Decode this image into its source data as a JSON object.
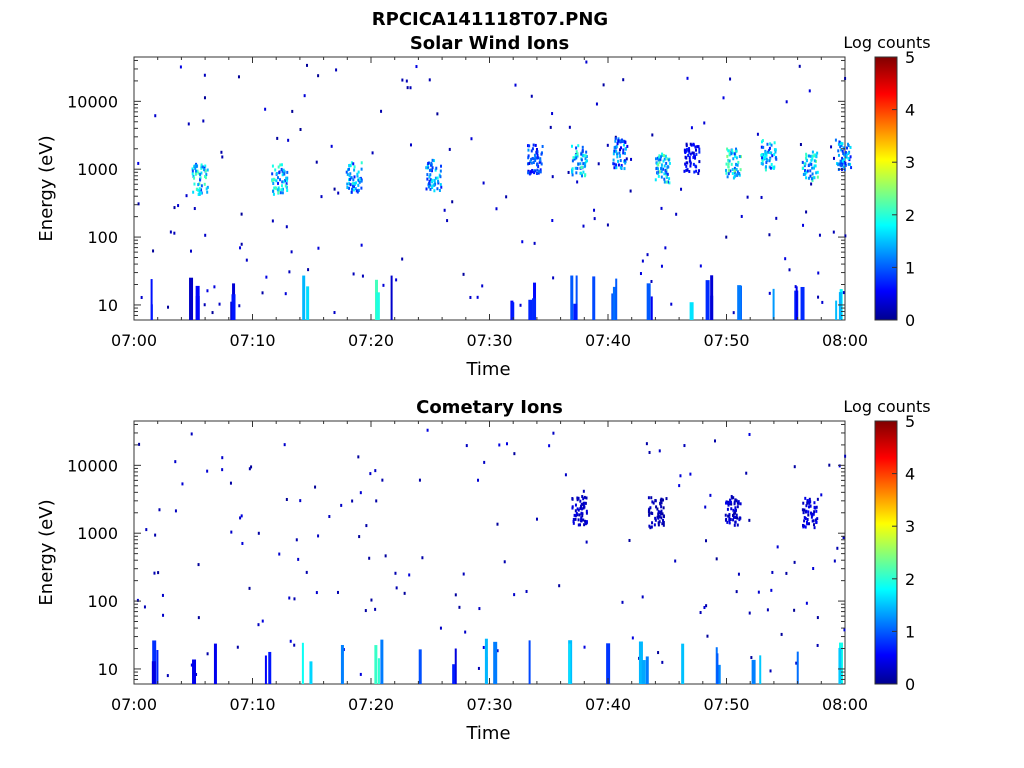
{
  "figure": {
    "title": "RPCICA141118T07.PNG"
  },
  "chart_data": [
    {
      "type": "heatmap",
      "title": "Solar Wind Ions",
      "xlabel": "Time",
      "ylabel": "Energy (eV)",
      "y_scale": "log",
      "xlim": [
        "07:00",
        "08:00"
      ],
      "ylim": [
        6,
        45000
      ],
      "x_ticks": [
        "07:00",
        "07:10",
        "07:20",
        "07:30",
        "07:40",
        "07:50",
        "08:00"
      ],
      "y_ticks": [
        "10",
        "100",
        "1000",
        "10000"
      ],
      "colorbar": {
        "label": "Log counts",
        "range": [
          0,
          5
        ],
        "ticks": [
          "0",
          "1",
          "2",
          "3",
          "4",
          "5"
        ],
        "colormap": "jet"
      },
      "grid": false,
      "bursts": [
        {
          "time": "07:05.5",
          "energy": 750,
          "log_counts": 2.3
        },
        {
          "time": "07:12.2",
          "energy": 750,
          "log_counts": 2.2
        },
        {
          "time": "07:18.5",
          "energy": 800,
          "log_counts": 2.0
        },
        {
          "time": "07:25.2",
          "energy": 850,
          "log_counts": 1.9
        },
        {
          "time": "07:33.8",
          "energy": 1500,
          "log_counts": 1.3
        },
        {
          "time": "07:37.5",
          "energy": 1400,
          "log_counts": 2.2
        },
        {
          "time": "07:41.0",
          "energy": 1800,
          "log_counts": 1.6
        },
        {
          "time": "07:44.5",
          "energy": 1100,
          "log_counts": 2.4
        },
        {
          "time": "07:47.0",
          "energy": 1500,
          "log_counts": 0.8
        },
        {
          "time": "07:50.5",
          "energy": 1300,
          "log_counts": 2.5
        },
        {
          "time": "07:53.5",
          "energy": 1700,
          "log_counts": 2.0
        },
        {
          "time": "07:57.0",
          "energy": 1200,
          "log_counts": 2.3
        },
        {
          "time": "07:59.8",
          "energy": 1700,
          "log_counts": 1.8
        }
      ],
      "low_energy_bursts": [
        {
          "time": "07:01.5",
          "log_counts": 0.8
        },
        {
          "time": "07:05.0",
          "log_counts": 0.6
        },
        {
          "time": "07:08.0",
          "log_counts": 0.7
        },
        {
          "time": "07:14.5",
          "log_counts": 1.8
        },
        {
          "time": "07:20.5",
          "log_counts": 2.2
        },
        {
          "time": "07:22.0",
          "log_counts": 0.7
        },
        {
          "time": "07:31.5",
          "log_counts": 0.9
        },
        {
          "time": "07:33.5",
          "log_counts": 0.8
        },
        {
          "time": "07:37.0",
          "log_counts": 1.1
        },
        {
          "time": "07:38.5",
          "log_counts": 1.4
        },
        {
          "time": "07:40.5",
          "log_counts": 1.2
        },
        {
          "time": "07:43.5",
          "log_counts": 1.0
        },
        {
          "time": "07:46.5",
          "log_counts": 1.6
        },
        {
          "time": "07:48.5",
          "log_counts": 0.8
        },
        {
          "time": "07:51.0",
          "log_counts": 1.9
        },
        {
          "time": "07:53.5",
          "log_counts": 1.7
        },
        {
          "time": "07:56.0",
          "log_counts": 0.9
        },
        {
          "time": "07:59.5",
          "log_counts": 2.0
        }
      ]
    },
    {
      "type": "heatmap",
      "title": "Cometary Ions",
      "xlabel": "Time",
      "ylabel": "Energy (eV)",
      "y_scale": "log",
      "xlim": [
        "07:00",
        "08:00"
      ],
      "ylim": [
        6,
        45000
      ],
      "x_ticks": [
        "07:00",
        "07:10",
        "07:20",
        "07:30",
        "07:40",
        "07:50",
        "08:00"
      ],
      "y_ticks": [
        "10",
        "100",
        "1000",
        "10000"
      ],
      "colorbar": {
        "label": "Log counts",
        "range": [
          0,
          5
        ],
        "ticks": [
          "0",
          "1",
          "2",
          "3",
          "4",
          "5"
        ],
        "colormap": "jet"
      },
      "grid": false,
      "bursts": [
        {
          "time": "07:37.5",
          "energy": 2200,
          "log_counts": 0.5
        },
        {
          "time": "07:44.0",
          "energy": 2100,
          "log_counts": 0.4
        },
        {
          "time": "07:50.5",
          "energy": 2200,
          "log_counts": 0.5
        },
        {
          "time": "07:57.0",
          "energy": 2100,
          "log_counts": 0.6
        }
      ],
      "low_energy_bursts": [
        {
          "time": "07:01.5",
          "log_counts": 0.9
        },
        {
          "time": "07:04.5",
          "log_counts": 0.8
        },
        {
          "time": "07:07.0",
          "log_counts": 0.7
        },
        {
          "time": "07:11.0",
          "log_counts": 0.9
        },
        {
          "time": "07:14.5",
          "log_counts": 1.9
        },
        {
          "time": "07:17.5",
          "log_counts": 2.0
        },
        {
          "time": "07:20.5",
          "log_counts": 2.1
        },
        {
          "time": "07:24.0",
          "log_counts": 2.0
        },
        {
          "time": "07:27.0",
          "log_counts": 0.7
        },
        {
          "time": "07:30.0",
          "log_counts": 1.4
        },
        {
          "time": "07:33.5",
          "log_counts": 1.0
        },
        {
          "time": "07:36.5",
          "log_counts": 1.8
        },
        {
          "time": "07:40.0",
          "log_counts": 1.4
        },
        {
          "time": "07:43.0",
          "log_counts": 1.6
        },
        {
          "time": "07:46.0",
          "log_counts": 1.7
        },
        {
          "time": "07:49.0",
          "log_counts": 1.5
        },
        {
          "time": "07:52.5",
          "log_counts": 1.9
        },
        {
          "time": "07:56.0",
          "log_counts": 1.6
        },
        {
          "time": "07:59.5",
          "log_counts": 2.0
        }
      ]
    }
  ]
}
